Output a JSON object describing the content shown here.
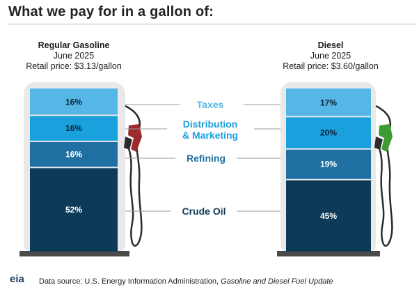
{
  "title": "What we pay for in a gallon of:",
  "colors": {
    "taxes": "#56b6e6",
    "distribution": "#1aa0dc",
    "refining": "#1f6fa3",
    "crude": "#0d3a57",
    "pump_body": "#e9e9e9",
    "gas_nozzle": "#9c2b2b",
    "diesel_nozzle": "#3d9b33"
  },
  "pumps": [
    {
      "name": "Regular Gasoline",
      "date": "June 2025",
      "price": "Retail price: $3.13/gallon"
    },
    {
      "name": "Diesel",
      "date": "June 2025",
      "price": "Retail price: $3.60/gallon"
    }
  ],
  "labels": {
    "taxes": "Taxes",
    "distribution_1": "Distribution",
    "distribution_2": "& Marketing",
    "refining": "Refining",
    "crude": "Crude Oil"
  },
  "footer": {
    "logo": "eia",
    "prefix": "Data source: U.S. Energy Information Administration, ",
    "italic": "Gasoline and Diesel Fuel Update"
  },
  "chart_data": {
    "type": "bar",
    "stacked": true,
    "categories": [
      "Regular Gasoline",
      "Diesel"
    ],
    "series": [
      {
        "name": "Crude Oil",
        "values": [
          52,
          45
        ]
      },
      {
        "name": "Refining",
        "values": [
          16,
          19
        ]
      },
      {
        "name": "Distribution & Marketing",
        "values": [
          16,
          20
        ]
      },
      {
        "name": "Taxes",
        "values": [
          16,
          17
        ]
      }
    ],
    "value_labels": {
      "gasoline": [
        "16%",
        "16%",
        "16%",
        "52%"
      ],
      "diesel": [
        "17%",
        "20%",
        "19%",
        "45%"
      ]
    }
  }
}
